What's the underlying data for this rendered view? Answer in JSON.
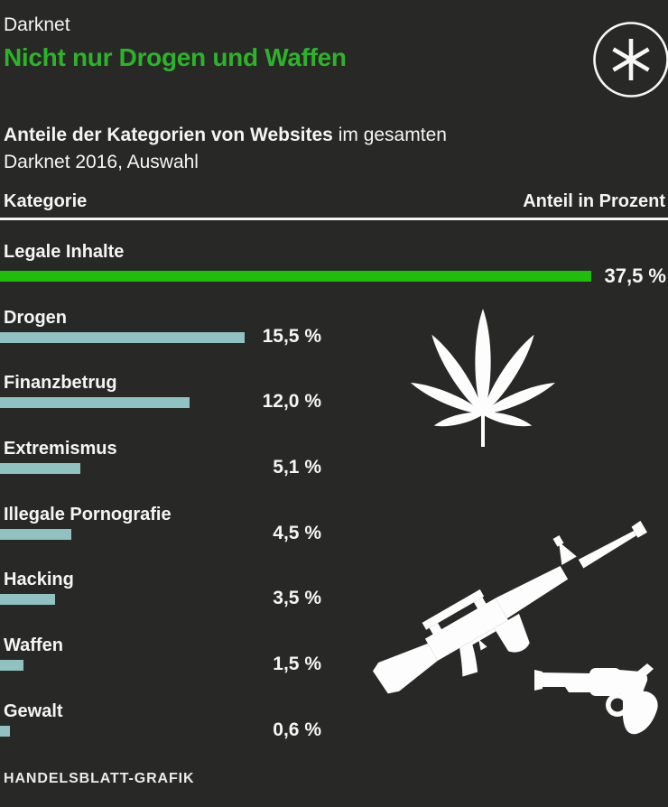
{
  "colors": {
    "background": "#282826",
    "title_green": "#2db32a",
    "bar_green": "#1fbe0a",
    "bar_teal": "#8fc2c1",
    "text": "#f5f5f3",
    "divider": "#f2f2f2"
  },
  "header": {
    "kicker": "Darknet",
    "title": "Nicht nur Drogen und Waffen"
  },
  "subtitle": {
    "lead_bold": "Anteile der Kategorien von Websites",
    "lead_rest": " im gesamten",
    "line2": "Darknet 2016, Auswahl"
  },
  "columns": {
    "category": "Kategorie",
    "share": "Anteil in Prozent"
  },
  "chart_data": {
    "type": "bar",
    "orientation": "horizontal",
    "title": "Nicht nur Drogen und Waffen",
    "subtitle": "Anteile der Kategorien von Websites im gesamten Darknet 2016, Auswahl",
    "unit": "percent",
    "xlim": [
      0,
      37.5
    ],
    "grid": false,
    "legend": false,
    "highlight_index": 0,
    "categories": [
      "Legale Inhalte",
      "Drogen",
      "Finanzbetrug",
      "Extremismus",
      "Illegale Pornografie",
      "Hacking",
      "Waffen",
      "Gewalt"
    ],
    "values": [
      37.5,
      15.5,
      12.0,
      5.1,
      4.5,
      3.5,
      1.5,
      0.6
    ],
    "value_labels": [
      "37,5 %",
      "15,5 %",
      "12,0 %",
      "5,1 %",
      "4,5 %",
      "3,5 %",
      "1,5 %",
      "0,6 %"
    ]
  },
  "icons": {
    "logo": "handelsblatt-asterisk-logo",
    "leaf": "cannabis-leaf-icon",
    "rifle": "assault-rifle-icon",
    "revolver": "revolver-icon"
  },
  "footer": {
    "credit": "HANDELSBLATT-GRAFIK"
  }
}
